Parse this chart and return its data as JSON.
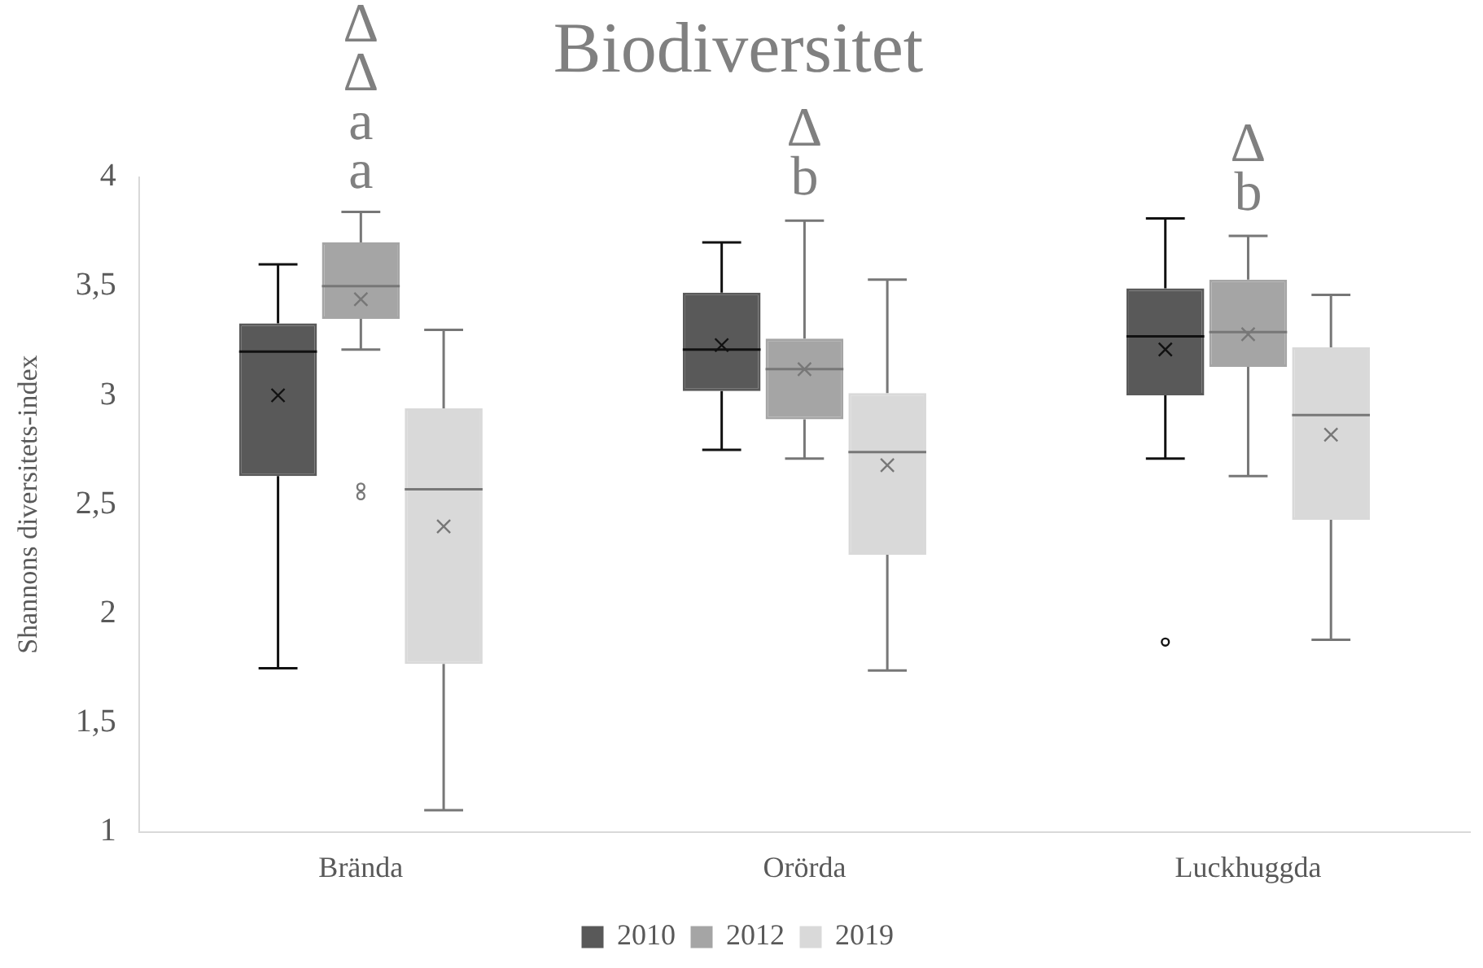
{
  "chart_data": {
    "type": "box",
    "title": "Biodiversitet",
    "ylabel": "Shannons diversitets-index",
    "categories": [
      "Brända",
      "Orörda",
      "Luckhuggda"
    ],
    "series": [
      {
        "name": "2010",
        "color": "#595959",
        "boxes": [
          {
            "low": 1.75,
            "q1": 2.63,
            "median": 3.2,
            "q3": 3.33,
            "high": 3.6,
            "mean": 3.0
          },
          {
            "low": 2.75,
            "q1": 3.02,
            "median": 3.21,
            "q3": 3.47,
            "high": 3.7,
            "mean": 3.23
          },
          {
            "low": 2.71,
            "q1": 3.0,
            "median": 3.27,
            "q3": 3.49,
            "high": 3.81,
            "mean": 3.21,
            "outliers": [
              1.87
            ]
          }
        ]
      },
      {
        "name": "2012",
        "color": "#a5a5a5",
        "boxes": [
          {
            "low": 3.21,
            "q1": 3.35,
            "median": 3.5,
            "q3": 3.7,
            "high": 3.84,
            "mean": 3.44,
            "outliers": [
              2.58,
              2.54
            ]
          },
          {
            "low": 2.71,
            "q1": 2.89,
            "median": 3.12,
            "q3": 3.26,
            "high": 3.8,
            "mean": 3.12
          },
          {
            "low": 2.63,
            "q1": 3.13,
            "median": 3.29,
            "q3": 3.53,
            "high": 3.73,
            "mean": 3.28
          }
        ]
      },
      {
        "name": "2019",
        "color": "#d9d9d9",
        "boxes": [
          {
            "low": 1.1,
            "q1": 1.77,
            "median": 2.57,
            "q3": 2.94,
            "high": 3.3,
            "mean": 2.4
          },
          {
            "low": 1.74,
            "q1": 2.27,
            "median": 2.74,
            "q3": 3.01,
            "high": 3.53,
            "mean": 2.68
          },
          {
            "low": 1.88,
            "q1": 2.43,
            "median": 2.91,
            "q3": 3.22,
            "high": 3.46,
            "mean": 2.82
          }
        ]
      }
    ],
    "ylim": [
      1,
      4
    ],
    "yticks": [
      1,
      {
        "value": 1.5,
        "label": "1,5"
      },
      2,
      {
        "value": 2.5,
        "label": "2,5"
      },
      3,
      {
        "value": 3.5,
        "label": "3,5"
      },
      4
    ],
    "grid": false,
    "legend": "bottom",
    "annotations": [
      {
        "text": "Δ\nΔ\na\na",
        "x": "Brända",
        "y": 3.86
      },
      {
        "text": "Δ\nb",
        "x": "Orörda",
        "y": 3.83
      },
      {
        "text": "Δ\nb",
        "x": "Luckhuggda",
        "y": 3.76
      }
    ]
  }
}
